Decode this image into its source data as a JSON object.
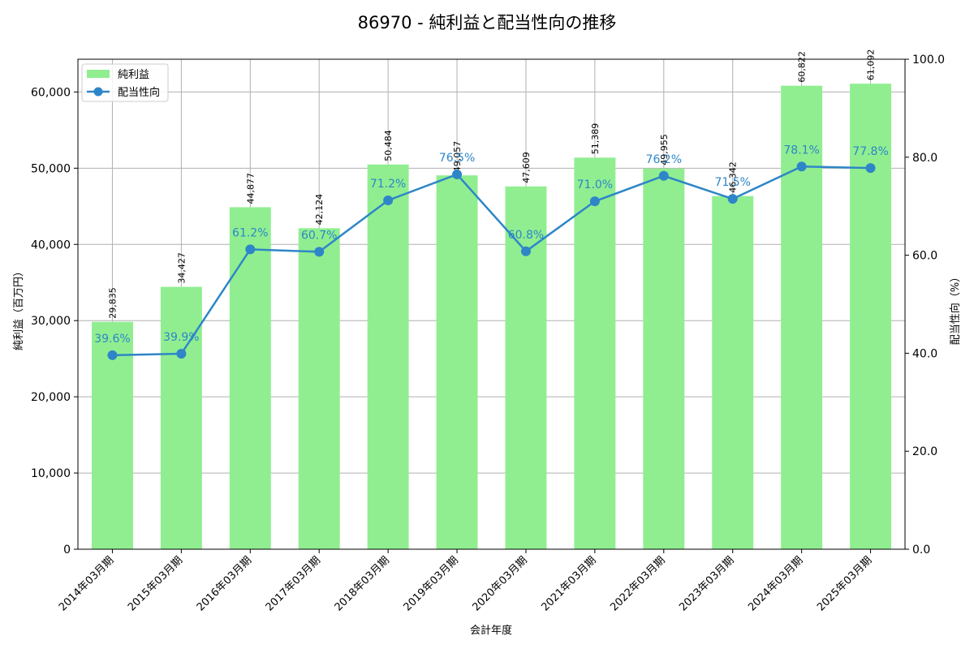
{
  "title": "86970 - 純利益と配当性向の推移",
  "chart_data": {
    "type": "bar+line",
    "title": "86970 - 純利益と配当性向の推移",
    "xlabel": "会計年度",
    "ylabel": "純利益（百万円）",
    "y2label": "配当性向（%）",
    "ylim": [
      0,
      64300
    ],
    "y2lim": [
      0,
      100
    ],
    "yticks": [
      "0",
      "10,000",
      "20,000",
      "30,000",
      "40,000",
      "50,000",
      "60,000"
    ],
    "y2ticks": [
      "0.0",
      "20.0",
      "40.0",
      "60.0",
      "80.0",
      "100.0"
    ],
    "grid": true,
    "legend_position": "upper left",
    "categories": [
      "2014年03月期",
      "2015年03月期",
      "2016年03月期",
      "2017年03月期",
      "2018年03月期",
      "2019年03月期",
      "2020年03月期",
      "2021年03月期",
      "2022年03月期",
      "2023年03月期",
      "2024年03月期",
      "2025年03月期"
    ],
    "series": [
      {
        "name": "純利益",
        "type": "bar",
        "color": "#90ee90",
        "axis": "left",
        "values": [
          29835,
          34427,
          44877,
          42124,
          50484,
          49057,
          47609,
          51389,
          49955,
          46342,
          60822,
          61092
        ],
        "labels": [
          "29,835",
          "34,427",
          "44,877",
          "42,124",
          "50,484",
          "49,057",
          "47,609",
          "51,389",
          "49,955",
          "46,342",
          "60,822",
          "61,092"
        ]
      },
      {
        "name": "配当性向",
        "type": "line",
        "color": "#2e86c8",
        "axis": "right",
        "values": [
          39.6,
          39.9,
          61.2,
          60.7,
          71.2,
          76.5,
          60.8,
          71.0,
          76.2,
          71.5,
          78.1,
          77.8
        ],
        "labels": [
          "39.6%",
          "39.9%",
          "61.2%",
          "60.7%",
          "71.2%",
          "76.5%",
          "60.8%",
          "71.0%",
          "76.2%",
          "71.5%",
          "78.1%",
          "77.8%"
        ]
      }
    ]
  }
}
